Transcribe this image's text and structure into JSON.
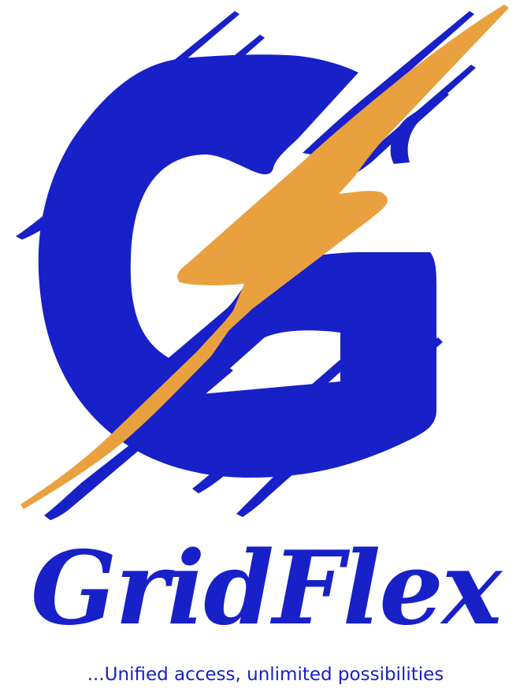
{
  "brand": {
    "name": "GridFlex",
    "tagline": "...Unified access, unlimited possibilities"
  },
  "icons": {
    "logo_mark": "g-letter-with-lightning-bolt-icon"
  },
  "colors": {
    "primary_blue": "#1820C8",
    "accent_orange": "#E9A03E",
    "background": "#FFFFFF"
  }
}
